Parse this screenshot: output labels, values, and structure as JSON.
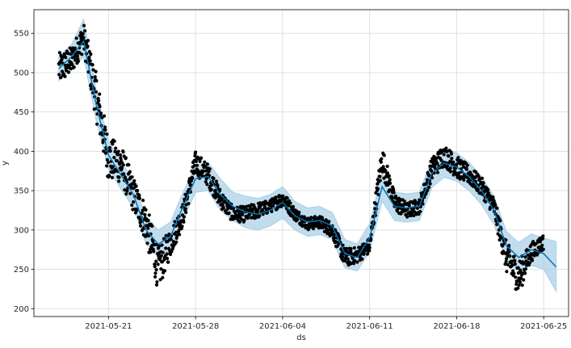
{
  "chart_data": {
    "type": "line",
    "xlabel": "ds",
    "ylabel": "y",
    "x_ticks": [
      "2021-05-21",
      "2021-05-28",
      "2021-06-04",
      "2021-06-11",
      "2021-06-18",
      "2021-06-25"
    ],
    "y_ticks": [
      200,
      250,
      300,
      350,
      400,
      450,
      500,
      550
    ],
    "xlim": [
      "2021-05-15",
      "2021-06-27"
    ],
    "ylim": [
      190,
      580
    ],
    "grid": true,
    "colors": {
      "observed": "#000000",
      "forecast": "#0072B2",
      "band": "#a6cfe6"
    },
    "forecast": {
      "x": [
        "2021-05-17",
        "2021-05-18",
        "2021-05-19",
        "2021-05-20",
        "2021-05-21",
        "2021-05-22",
        "2021-05-23",
        "2021-05-24",
        "2021-05-25",
        "2021-05-26",
        "2021-05-27",
        "2021-05-28",
        "2021-05-29",
        "2021-05-30",
        "2021-05-31",
        "2021-06-01",
        "2021-06-02",
        "2021-06-03",
        "2021-06-04",
        "2021-06-05",
        "2021-06-06",
        "2021-06-07",
        "2021-06-08",
        "2021-06-09",
        "2021-06-10",
        "2021-06-11",
        "2021-06-12",
        "2021-06-13",
        "2021-06-14",
        "2021-06-15",
        "2021-06-16",
        "2021-06-17",
        "2021-06-18",
        "2021-06-19",
        "2021-06-20",
        "2021-06-21",
        "2021-06-22",
        "2021-06-23",
        "2021-06-24",
        "2021-06-25",
        "2021-06-26"
      ],
      "yhat": [
        505,
        520,
        540,
        460,
        395,
        370,
        345,
        300,
        282,
        292,
        330,
        365,
        368,
        345,
        330,
        323,
        320,
        325,
        335,
        318,
        310,
        312,
        305,
        270,
        265,
        290,
        355,
        330,
        328,
        330,
        372,
        385,
        380,
        368,
        350,
        325,
        280,
        265,
        275,
        270,
        253
      ],
      "yhat_lower": [
        490,
        505,
        520,
        440,
        378,
        352,
        328,
        283,
        265,
        275,
        312,
        348,
        350,
        325,
        312,
        303,
        300,
        305,
        315,
        300,
        292,
        294,
        288,
        252,
        248,
        272,
        337,
        312,
        310,
        312,
        354,
        367,
        362,
        350,
        332,
        307,
        262,
        246,
        255,
        250,
        222
      ],
      "yhat_upper": [
        520,
        535,
        568,
        478,
        412,
        388,
        362,
        317,
        300,
        310,
        348,
        382,
        386,
        365,
        348,
        343,
        340,
        345,
        355,
        336,
        328,
        330,
        322,
        288,
        282,
        308,
        373,
        348,
        346,
        348,
        390,
        403,
        398,
        386,
        368,
        343,
        298,
        284,
        295,
        290,
        285
      ]
    },
    "observed": {
      "x": [
        "2021-05-17",
        "2021-05-18",
        "2021-05-19",
        "2021-05-20",
        "2021-05-21",
        "2021-05-22",
        "2021-05-23",
        "2021-05-24",
        "2021-05-25",
        "2021-05-26",
        "2021-05-27",
        "2021-05-28",
        "2021-05-29",
        "2021-05-30",
        "2021-05-31",
        "2021-06-01",
        "2021-06-02",
        "2021-06-03",
        "2021-06-04",
        "2021-06-05",
        "2021-06-06",
        "2021-06-07",
        "2021-06-08",
        "2021-06-09",
        "2021-06-10",
        "2021-06-11",
        "2021-06-12",
        "2021-06-13",
        "2021-06-14",
        "2021-06-15",
        "2021-06-16",
        "2021-06-17",
        "2021-06-18",
        "2021-06-19",
        "2021-06-20",
        "2021-06-21",
        "2021-06-22",
        "2021-06-23",
        "2021-06-24",
        "2021-06-25"
      ],
      "y": [
        505,
        515,
        545,
        470,
        390,
        385,
        345,
        310,
        250,
        285,
        320,
        385,
        370,
        340,
        320,
        320,
        325,
        330,
        340,
        320,
        308,
        310,
        300,
        265,
        268,
        280,
        390,
        335,
        325,
        330,
        378,
        395,
        380,
        370,
        355,
        330,
        265,
        240,
        272,
        285
      ],
      "spread": [
        20,
        18,
        18,
        30,
        28,
        25,
        22,
        25,
        28,
        18,
        15,
        15,
        14,
        12,
        10,
        10,
        10,
        8,
        10,
        8,
        8,
        8,
        10,
        12,
        10,
        10,
        18,
        12,
        10,
        10,
        14,
        14,
        14,
        12,
        12,
        12,
        20,
        22,
        12,
        10
      ]
    }
  }
}
